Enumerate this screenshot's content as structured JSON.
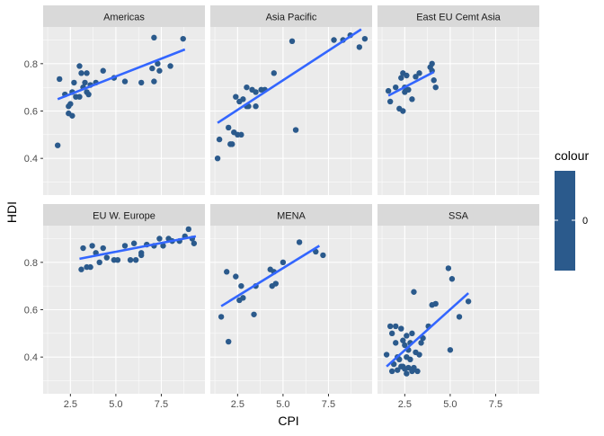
{
  "chart_data": {
    "type": "scatter",
    "xlabel": "CPI",
    "ylabel": "HDI",
    "xlim": [
      1.0,
      9.9
    ],
    "ylim": [
      0.245,
      0.955
    ],
    "x_ticks": [
      2.5,
      5.0,
      7.5
    ],
    "x_tick_labels": [
      "2.5",
      "5.0",
      "7.5"
    ],
    "y_ticks": [
      0.4,
      0.6,
      0.8
    ],
    "y_tick_labels": [
      "0.4",
      "0.6",
      "0.8"
    ],
    "grid": true,
    "point_color": "#2b5a8c",
    "line_color": "#3366ff",
    "legend": {
      "title": "colour",
      "tick_label": "0",
      "color": "#2b5a8c",
      "placement": "right"
    },
    "facets": [
      {
        "name": "Americas",
        "fit": {
          "x": [
            1.8,
            8.8
          ],
          "y": [
            0.65,
            0.86
          ]
        },
        "points": [
          [
            1.8,
            0.455
          ],
          [
            1.9,
            0.735
          ],
          [
            2.2,
            0.67
          ],
          [
            2.4,
            0.62
          ],
          [
            2.4,
            0.59
          ],
          [
            2.5,
            0.63
          ],
          [
            2.6,
            0.68
          ],
          [
            2.6,
            0.58
          ],
          [
            2.7,
            0.72
          ],
          [
            2.8,
            0.66
          ],
          [
            3.0,
            0.66
          ],
          [
            3.0,
            0.79
          ],
          [
            3.1,
            0.76
          ],
          [
            3.2,
            0.7
          ],
          [
            3.3,
            0.72
          ],
          [
            3.4,
            0.76
          ],
          [
            3.4,
            0.68
          ],
          [
            3.5,
            0.67
          ],
          [
            3.6,
            0.71
          ],
          [
            3.9,
            0.72
          ],
          [
            4.3,
            0.77
          ],
          [
            4.9,
            0.74
          ],
          [
            5.5,
            0.725
          ],
          [
            6.4,
            0.72
          ],
          [
            7.0,
            0.78
          ],
          [
            7.1,
            0.725
          ],
          [
            7.1,
            0.91
          ],
          [
            7.3,
            0.8
          ],
          [
            7.4,
            0.77
          ],
          [
            8.0,
            0.79
          ],
          [
            8.7,
            0.905
          ]
        ]
      },
      {
        "name": "Asia Pacific",
        "fit": {
          "x": [
            1.4,
            9.3
          ],
          "y": [
            0.55,
            0.945
          ]
        },
        "points": [
          [
            1.4,
            0.4
          ],
          [
            1.5,
            0.48
          ],
          [
            2.0,
            0.53
          ],
          [
            2.1,
            0.46
          ],
          [
            2.2,
            0.46
          ],
          [
            2.3,
            0.51
          ],
          [
            2.4,
            0.66
          ],
          [
            2.5,
            0.5
          ],
          [
            2.6,
            0.64
          ],
          [
            2.7,
            0.5
          ],
          [
            2.8,
            0.65
          ],
          [
            3.0,
            0.62
          ],
          [
            3.0,
            0.7
          ],
          [
            3.1,
            0.62
          ],
          [
            3.3,
            0.69
          ],
          [
            3.5,
            0.68
          ],
          [
            3.5,
            0.62
          ],
          [
            3.8,
            0.69
          ],
          [
            4.0,
            0.69
          ],
          [
            4.5,
            0.76
          ],
          [
            5.5,
            0.895
          ],
          [
            5.7,
            0.52
          ],
          [
            7.8,
            0.9
          ],
          [
            8.3,
            0.9
          ],
          [
            8.7,
            0.92
          ],
          [
            9.2,
            0.87
          ],
          [
            9.5,
            0.905
          ]
        ]
      },
      {
        "name": "East EU Cemt Asia",
        "fit": {
          "x": [
            1.6,
            4.1
          ],
          "y": [
            0.665,
            0.765
          ]
        },
        "points": [
          [
            1.6,
            0.685
          ],
          [
            1.7,
            0.64
          ],
          [
            2.0,
            0.7
          ],
          [
            2.2,
            0.61
          ],
          [
            2.3,
            0.74
          ],
          [
            2.4,
            0.6
          ],
          [
            2.4,
            0.76
          ],
          [
            2.5,
            0.68
          ],
          [
            2.5,
            0.7
          ],
          [
            2.6,
            0.75
          ],
          [
            2.7,
            0.69
          ],
          [
            2.9,
            0.65
          ],
          [
            3.1,
            0.745
          ],
          [
            3.3,
            0.76
          ],
          [
            3.9,
            0.785
          ],
          [
            4.0,
            0.8
          ],
          [
            4.0,
            0.77
          ],
          [
            4.1,
            0.73
          ],
          [
            4.2,
            0.7
          ]
        ]
      },
      {
        "name": "EU W. Europe",
        "fit": {
          "x": [
            3.0,
            9.4
          ],
          "y": [
            0.815,
            0.91
          ]
        },
        "points": [
          [
            3.1,
            0.77
          ],
          [
            3.2,
            0.86
          ],
          [
            3.4,
            0.78
          ],
          [
            3.6,
            0.78
          ],
          [
            3.7,
            0.87
          ],
          [
            3.9,
            0.84
          ],
          [
            4.1,
            0.8
          ],
          [
            4.3,
            0.86
          ],
          [
            4.5,
            0.82
          ],
          [
            4.9,
            0.81
          ],
          [
            5.1,
            0.81
          ],
          [
            5.5,
            0.87
          ],
          [
            5.8,
            0.81
          ],
          [
            6.0,
            0.88
          ],
          [
            6.1,
            0.81
          ],
          [
            6.4,
            0.84
          ],
          [
            6.4,
            0.83
          ],
          [
            6.7,
            0.875
          ],
          [
            7.1,
            0.87
          ],
          [
            7.4,
            0.9
          ],
          [
            7.6,
            0.87
          ],
          [
            7.9,
            0.9
          ],
          [
            8.1,
            0.89
          ],
          [
            8.5,
            0.89
          ],
          [
            8.8,
            0.91
          ],
          [
            9.0,
            0.94
          ],
          [
            9.2,
            0.9
          ],
          [
            9.3,
            0.88
          ]
        ]
      },
      {
        "name": "MENA",
        "fit": {
          "x": [
            1.6,
            7.0
          ],
          "y": [
            0.615,
            0.87
          ]
        },
        "points": [
          [
            1.6,
            0.57
          ],
          [
            1.9,
            0.76
          ],
          [
            2.0,
            0.465
          ],
          [
            2.4,
            0.74
          ],
          [
            2.6,
            0.64
          ],
          [
            2.7,
            0.7
          ],
          [
            2.8,
            0.65
          ],
          [
            3.4,
            0.58
          ],
          [
            3.5,
            0.7
          ],
          [
            4.3,
            0.77
          ],
          [
            4.4,
            0.7
          ],
          [
            4.5,
            0.76
          ],
          [
            4.6,
            0.71
          ],
          [
            5.0,
            0.8
          ],
          [
            5.9,
            0.885
          ],
          [
            6.8,
            0.845
          ],
          [
            7.2,
            0.83
          ]
        ]
      },
      {
        "name": "SSA",
        "fit": {
          "x": [
            1.5,
            6.0
          ],
          "y": [
            0.36,
            0.67
          ]
        },
        "points": [
          [
            1.5,
            0.41
          ],
          [
            1.7,
            0.53
          ],
          [
            1.8,
            0.34
          ],
          [
            1.8,
            0.5
          ],
          [
            1.9,
            0.37
          ],
          [
            2.0,
            0.46
          ],
          [
            2.0,
            0.53
          ],
          [
            2.1,
            0.4
          ],
          [
            2.1,
            0.345
          ],
          [
            2.2,
            0.39
          ],
          [
            2.3,
            0.36
          ],
          [
            2.3,
            0.52
          ],
          [
            2.4,
            0.36
          ],
          [
            2.4,
            0.47
          ],
          [
            2.5,
            0.35
          ],
          [
            2.5,
            0.45
          ],
          [
            2.6,
            0.33
          ],
          [
            2.6,
            0.4
          ],
          [
            2.6,
            0.49
          ],
          [
            2.7,
            0.355
          ],
          [
            2.7,
            0.43
          ],
          [
            2.8,
            0.46
          ],
          [
            2.8,
            0.39
          ],
          [
            2.9,
            0.34
          ],
          [
            2.9,
            0.5
          ],
          [
            3.0,
            0.355
          ],
          [
            3.0,
            0.675
          ],
          [
            3.1,
            0.42
          ],
          [
            3.2,
            0.34
          ],
          [
            3.3,
            0.41
          ],
          [
            3.4,
            0.46
          ],
          [
            3.5,
            0.48
          ],
          [
            3.8,
            0.53
          ],
          [
            4.0,
            0.62
          ],
          [
            4.2,
            0.625
          ],
          [
            4.9,
            0.775
          ],
          [
            5.0,
            0.43
          ],
          [
            5.1,
            0.73
          ],
          [
            5.5,
            0.57
          ],
          [
            6.0,
            0.635
          ]
        ]
      }
    ]
  }
}
